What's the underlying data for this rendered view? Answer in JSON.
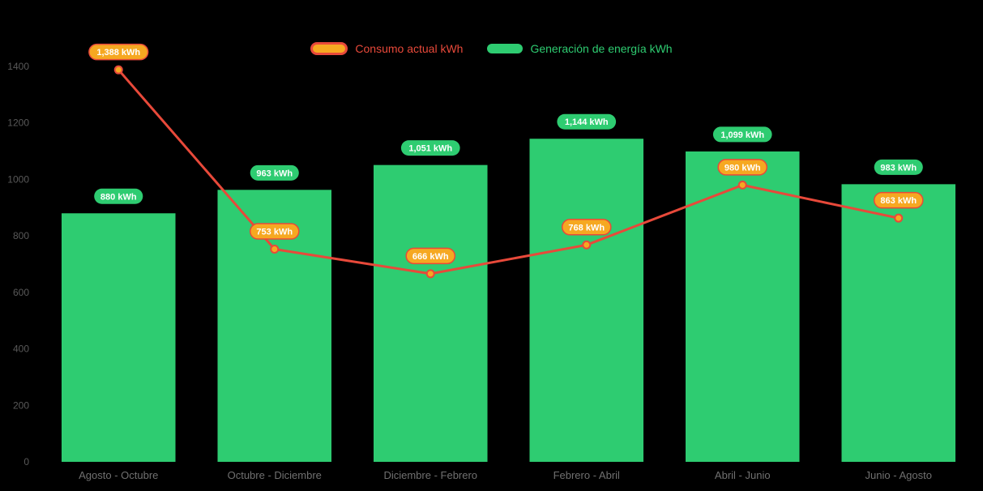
{
  "chart_data": {
    "type": "bar",
    "subtype": "bar+line combo",
    "categories": [
      "Agosto - Octubre",
      "Octubre - Diciembre",
      "Diciembre - Febrero",
      "Febrero - Abril",
      "Abril - Junio",
      "Junio - Agosto"
    ],
    "series": [
      {
        "name": "Consumo actual kWh",
        "type": "line",
        "values": [
          1388,
          753,
          666,
          768,
          980,
          863
        ],
        "labels": [
          "1,388 kWh",
          "753 kWh",
          "666 kWh",
          "768 kWh",
          "980 kWh",
          "863 kWh"
        ]
      },
      {
        "name": "Generación de energía kWh",
        "type": "bar",
        "values": [
          880,
          963,
          1051,
          1144,
          1099,
          983
        ],
        "labels": [
          "880 kWh",
          "963 kWh",
          "1,051 kWh",
          "1,144 kWh",
          "1,099 kWh",
          "983 kWh"
        ]
      }
    ],
    "title": "",
    "xlabel": "",
    "ylabel": "",
    "ylim": [
      0,
      1400
    ],
    "yticks": [
      0,
      200,
      400,
      600,
      800,
      1000,
      1200,
      1400
    ],
    "grid": false,
    "legend_position": "top",
    "colors": {
      "background": "#000000",
      "bar": "#2ecc71",
      "line": "#e8493a",
      "marker": "#f6a821",
      "bar_badge": "#2ecc71",
      "line_badge": "#f6a821",
      "line_badge_border": "#e8493a",
      "badge_text": "#ffffff",
      "y_axis_text": "#595959",
      "x_axis_text": "#707070"
    }
  }
}
